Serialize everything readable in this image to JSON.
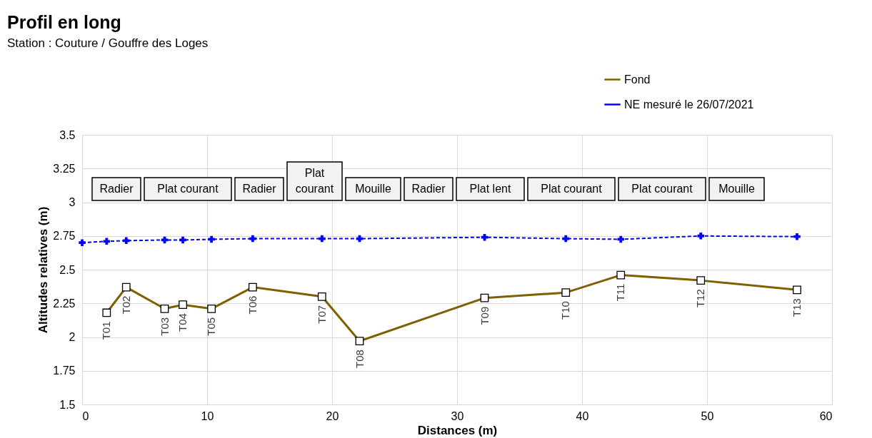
{
  "chart_data": {
    "type": "line",
    "title": "Profil en long",
    "subtitle": "Station : Couture / Gouffre des Loges",
    "xlabel": "Distances (m)",
    "ylabel": "Altitudes relatives (m)",
    "xlim": [
      0,
      60
    ],
    "xticks": [
      0,
      10,
      20,
      30,
      40,
      50,
      60
    ],
    "ylim": [
      1.5,
      3.5
    ],
    "yticks": [
      1.5,
      1.75,
      2,
      2.25,
      2.5,
      2.75,
      3,
      3.25,
      3.5
    ],
    "grid": true,
    "legend": "top right",
    "series": [
      {
        "name": "Fond",
        "color": "#7f6000",
        "marker": "square",
        "line_style": "solid",
        "x": [
          1.96,
          3.53,
          6.6,
          8.06,
          10.35,
          13.65,
          19.19,
          22.2,
          32.2,
          38.7,
          43.1,
          49.5,
          57.2
        ],
        "values": [
          2.18,
          2.37,
          2.21,
          2.24,
          2.21,
          2.37,
          2.3,
          1.97,
          2.29,
          2.33,
          2.46,
          2.42,
          2.35
        ],
        "value_labels": [
          "T01",
          "T02",
          "T03",
          "T04",
          "T05",
          "T06",
          "T07",
          "T08",
          "T09",
          "T10",
          "T11",
          "T12",
          "T13"
        ]
      },
      {
        "name": "NE mesuré le 26/07/2021",
        "color": "#0000ff",
        "marker": "cross",
        "line_style": "dashed",
        "x": [
          0,
          1.96,
          3.53,
          6.6,
          8.06,
          10.35,
          13.65,
          19.19,
          22.2,
          32.2,
          38.7,
          43.1,
          49.5,
          57.2
        ],
        "values": [
          2.7,
          2.71,
          2.715,
          2.72,
          2.72,
          2.725,
          2.73,
          2.73,
          2.73,
          2.74,
          2.73,
          2.725,
          2.75,
          2.745
        ]
      }
    ],
    "annotations": [
      "Radier",
      "Plat courant",
      "Radier",
      "Plat\ncourant",
      "Mouille",
      "Radier",
      "Plat lent",
      "Plat courant",
      "Plat courant",
      "Mouille"
    ]
  }
}
